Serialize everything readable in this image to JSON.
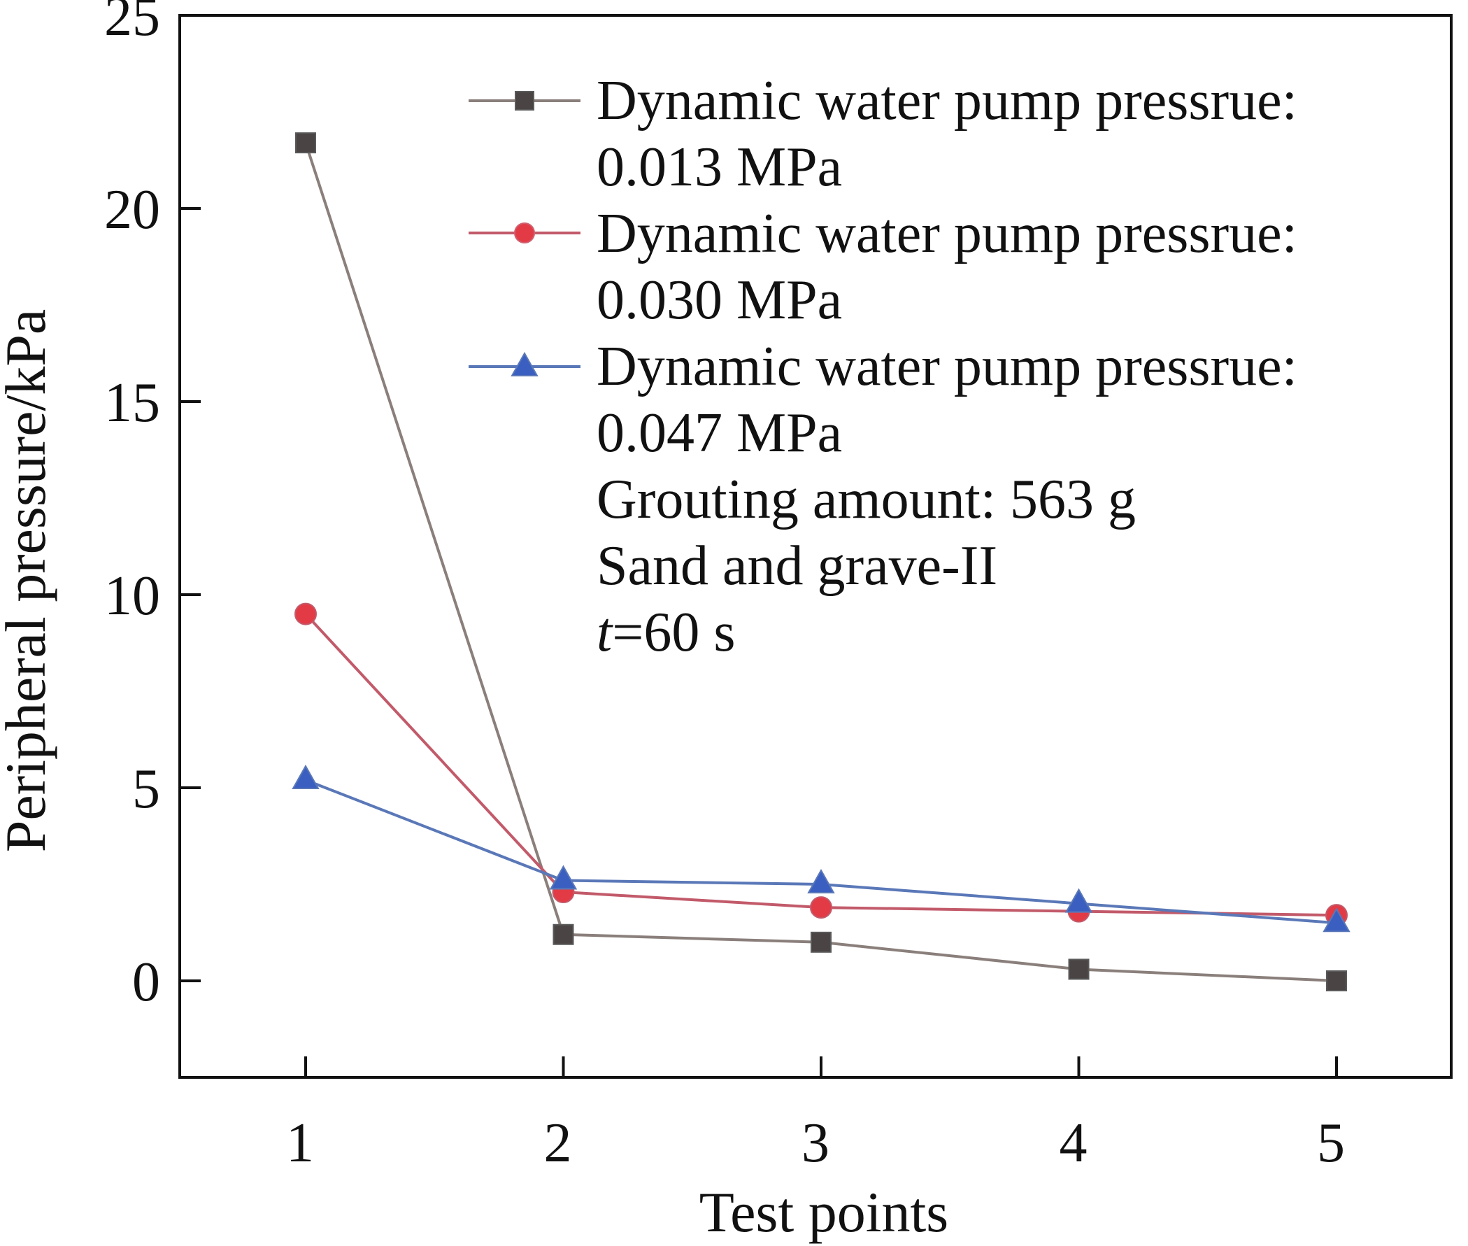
{
  "chart_data": {
    "type": "line",
    "xlabel": "Test points",
    "ylabel": "Peripheral pressure/kPa",
    "x": [
      1,
      2,
      3,
      4,
      5
    ],
    "xticks": [
      "1",
      "2",
      "3",
      "4",
      "5"
    ],
    "xlim": [
      0.5,
      5.5
    ],
    "ylim": [
      -2.5,
      25
    ],
    "yticks": [
      "0",
      "5",
      "10",
      "15",
      "20",
      "25"
    ],
    "grid": false,
    "legend_position": "top-right",
    "series": [
      {
        "name_line1": "Dynamic water pump pressrue:",
        "name_line2": "0.013 MPa",
        "marker": "square",
        "color": "#8a7f7b",
        "marker_color": "#4a4444",
        "values": [
          21.7,
          1.2,
          1.0,
          0.3,
          0.0
        ]
      },
      {
        "name_line1": "Dynamic water pump pressrue:",
        "name_line2": "0.030 MPa",
        "marker": "circle",
        "color": "#c25a6a",
        "marker_color": "#e23b46",
        "values": [
          9.5,
          2.3,
          1.9,
          1.8,
          1.7
        ]
      },
      {
        "name_line1": "Dynamic water pump pressrue:",
        "name_line2": "0.047 MPa",
        "marker": "triangle",
        "color": "#5a78b8",
        "marker_color": "#3b5fc0",
        "values": [
          5.2,
          2.6,
          2.5,
          2.0,
          1.5
        ]
      }
    ],
    "annotations": {
      "grouting": "Grouting amount: 563 g",
      "material": "Sand and grave-II",
      "time_var": "t",
      "time_rest": "=60 s"
    }
  }
}
